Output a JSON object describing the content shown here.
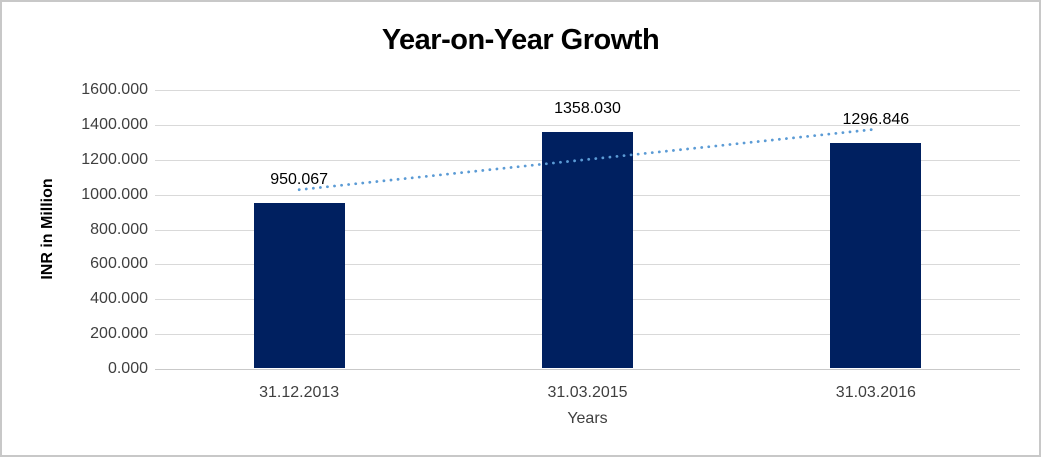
{
  "chart_data": {
    "type": "bar",
    "title": "Year-on-Year Growth",
    "xlabel": "Years",
    "ylabel": "INR in Million",
    "categories": [
      "31.12.2013",
      "31.03.2015",
      "31.03.2016"
    ],
    "values": [
      950.067,
      1358.03,
      1296.846
    ],
    "data_labels": [
      "950.067",
      "1358.030",
      "1296.846"
    ],
    "ylim": [
      0,
      1600
    ],
    "y_tick_step": 200,
    "y_ticks": [
      "1600.000",
      "1400.000",
      "1200.000",
      "1000.000",
      "800.000",
      "600.000",
      "400.000",
      "200.000",
      "0.000"
    ],
    "grid": "horizontal-only",
    "legend": "none",
    "trendline": {
      "type": "linear",
      "style": "dotted",
      "color": "#5b9bd5",
      "fit_points": [
        950.067,
        1358.03,
        1296.846
      ]
    },
    "colors": {
      "bar": "#002060",
      "gridline": "#d9d9d9",
      "axis_line": "#c9c9c9",
      "tick_label": "#3f3f3f",
      "title": "#000000",
      "frame_border": "#c8c8c8",
      "background": "#ffffff"
    }
  }
}
